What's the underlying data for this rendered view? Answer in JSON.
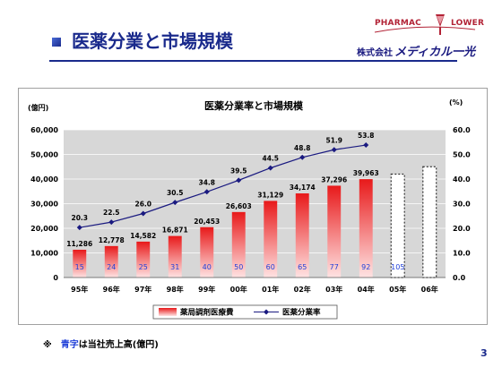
{
  "slide": {
    "title": "医薬分業と市場規模",
    "brand": {
      "pharmac": "PHARMAC",
      "lower": "LOWER",
      "company_prefix": "株式会社",
      "company_name": "メディカル一光"
    },
    "footnote": {
      "mark": "※",
      "blue": "青字",
      "rest": "は当社売上高(億円)"
    },
    "page_number": "3"
  },
  "colors": {
    "title": "#1a2a8c",
    "bar_top": "#e8191a",
    "bar_bottom": "#ffe3e3",
    "line": "#1a1a80",
    "company_sales": "#1f3fd8",
    "plot_bg": "#d7d7d7"
  },
  "chart_data": {
    "type": "bar",
    "title": "医薬分業率と市場規模",
    "y_left_unit": "(億円)",
    "y_right_unit": "(%)",
    "ylim_left": [
      0,
      60000
    ],
    "ylim_right": [
      0,
      60
    ],
    "y_left_ticks": [
      "0",
      "10,000",
      "20,000",
      "30,000",
      "40,000",
      "50,000",
      "60,000"
    ],
    "y_right_ticks": [
      "0.0",
      "10.0",
      "20.0",
      "30.0",
      "40.0",
      "50.0",
      "60.0"
    ],
    "categories": [
      "95年",
      "96年",
      "97年",
      "98年",
      "99年",
      "00年",
      "01年",
      "02年",
      "03年",
      "04年",
      "05年",
      "06年"
    ],
    "legend_position": "bottom",
    "series": [
      {
        "name": "薬局調剤医療費",
        "kind": "bar",
        "values": [
          11286,
          12778,
          14582,
          16871,
          20453,
          26603,
          31129,
          34174,
          37296,
          39963,
          null,
          null
        ],
        "labels": [
          "11,286",
          "12,778",
          "14,582",
          "16,871",
          "20,453",
          "26,603",
          "31,129",
          "34,174",
          "37,296",
          "39,963",
          "",
          ""
        ],
        "forecast_values": [
          null,
          null,
          null,
          null,
          null,
          null,
          null,
          null,
          null,
          null,
          42000,
          45000
        ]
      },
      {
        "name": "医薬分業率",
        "kind": "line",
        "axis": "right",
        "values": [
          20.3,
          22.5,
          26.0,
          30.5,
          34.8,
          39.5,
          44.5,
          48.8,
          51.9,
          53.8,
          null,
          null
        ],
        "labels": [
          "20.3",
          "22.5",
          "26.0",
          "30.5",
          "34.8",
          "39.5",
          "44.5",
          "48.8",
          "51.9",
          "53.8",
          "",
          ""
        ]
      }
    ],
    "company_sales": {
      "values": [
        15,
        24,
        25,
        31,
        40,
        50,
        60,
        65,
        77,
        92,
        105,
        null
      ],
      "labels": [
        "15",
        "24",
        "25",
        "31",
        "40",
        "50",
        "60",
        "65",
        "77",
        "92",
        "105",
        ""
      ]
    }
  }
}
